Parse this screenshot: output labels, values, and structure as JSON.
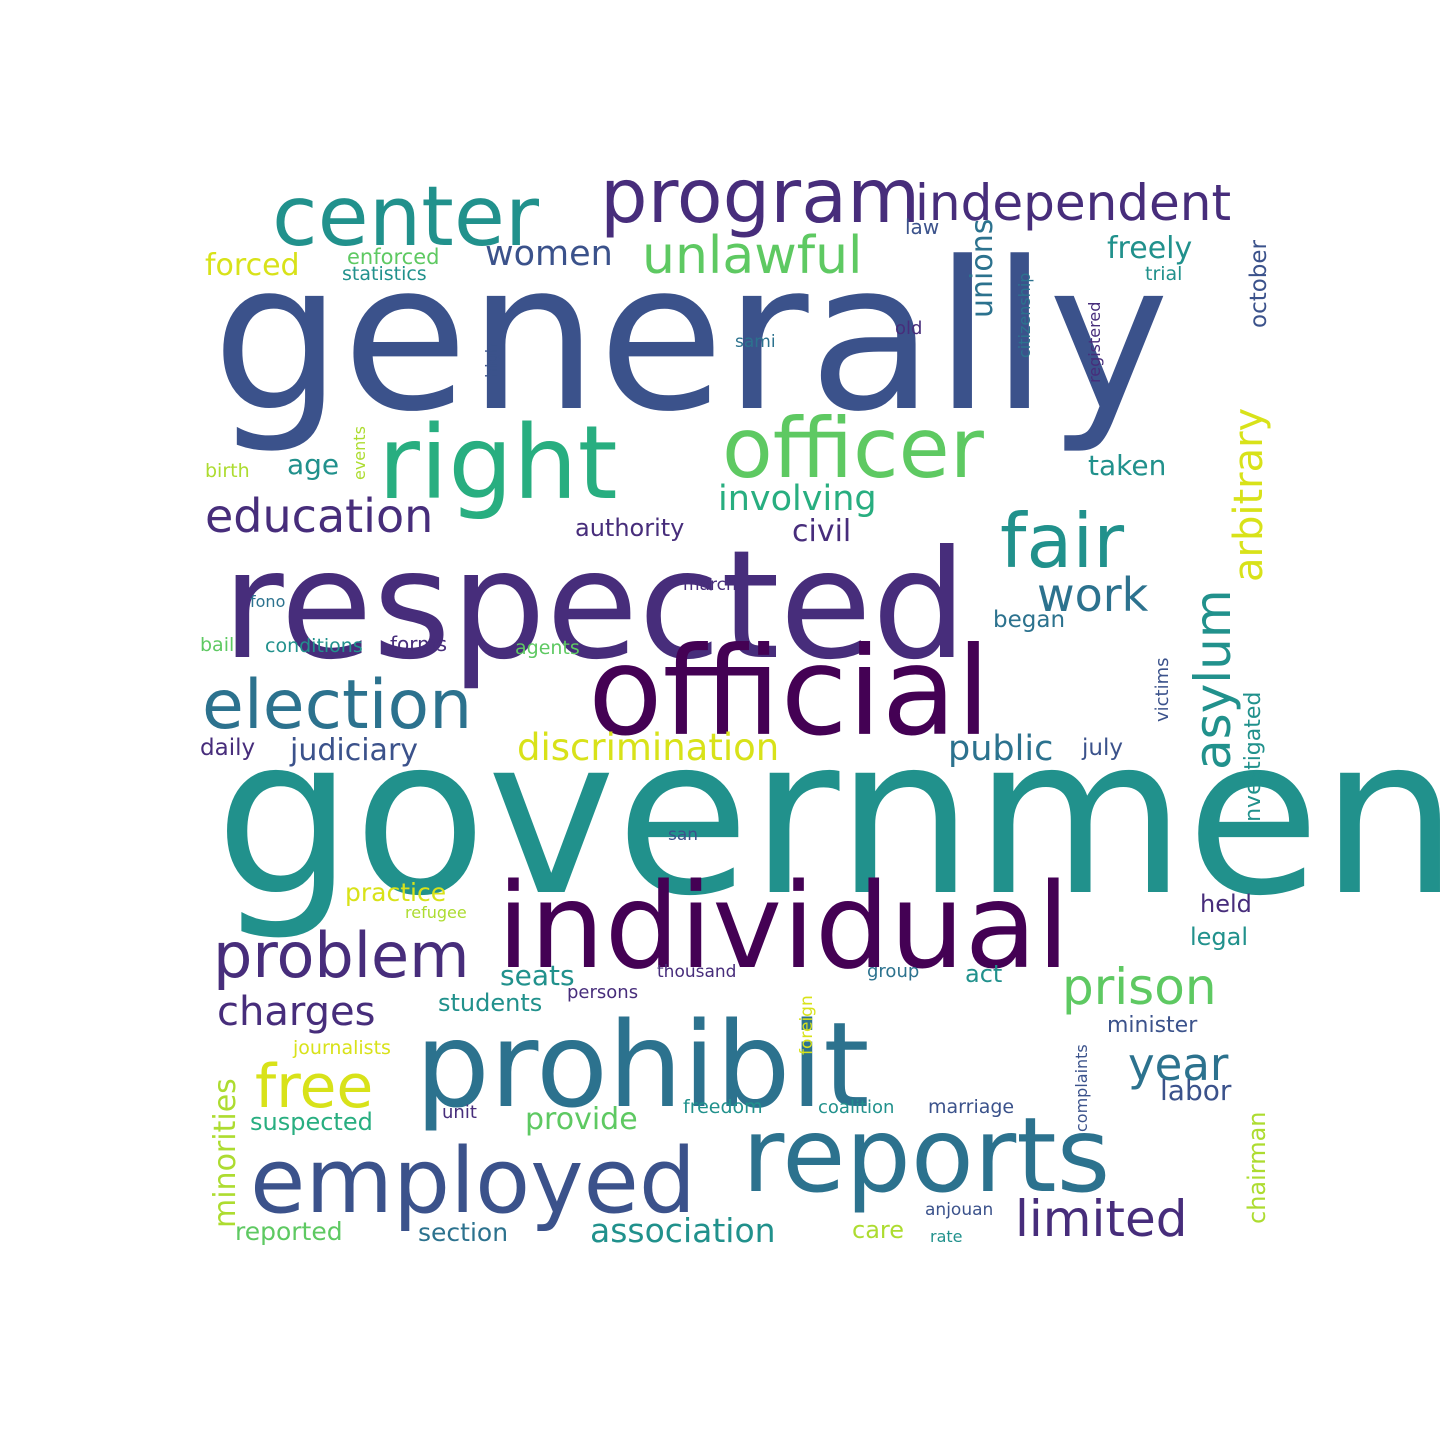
{
  "word_cloud": {
    "palette": {
      "dark_purple": "#440154",
      "purple": "#472d7b",
      "indigo": "#3b528b",
      "blue": "#2c728e",
      "teal": "#21918c",
      "green_teal": "#28ae80",
      "green": "#5ec962",
      "lime": "#addc30",
      "yellow": "#d8e219"
    },
    "words": [
      {
        "text": "generally",
        "color": "indigo"
      },
      {
        "text": "government",
        "color": "teal"
      },
      {
        "text": "respected",
        "color": "purple"
      },
      {
        "text": "official",
        "color": "dark_purple"
      },
      {
        "text": "individual",
        "color": "dark_purple"
      },
      {
        "text": "prohibit",
        "color": "blue"
      },
      {
        "text": "reports",
        "color": "blue"
      },
      {
        "text": "right",
        "color": "green_teal"
      },
      {
        "text": "officer",
        "color": "green"
      },
      {
        "text": "center",
        "color": "teal"
      },
      {
        "text": "program",
        "color": "purple"
      },
      {
        "text": "employed",
        "color": "indigo"
      },
      {
        "text": "election",
        "color": "blue"
      },
      {
        "text": "fair",
        "color": "teal"
      },
      {
        "text": "independent",
        "color": "purple"
      },
      {
        "text": "problem",
        "color": "purple"
      },
      {
        "text": "unlawful",
        "color": "green"
      },
      {
        "text": "free",
        "color": "yellow"
      },
      {
        "text": "prison",
        "color": "green"
      },
      {
        "text": "education",
        "color": "purple"
      },
      {
        "text": "limited",
        "color": "purple"
      },
      {
        "text": "year",
        "color": "blue"
      },
      {
        "text": "asylum",
        "color": "teal"
      },
      {
        "text": "work",
        "color": "blue"
      },
      {
        "text": "charges",
        "color": "purple"
      },
      {
        "text": "involving",
        "color": "green_teal"
      },
      {
        "text": "discrimination",
        "color": "yellow"
      },
      {
        "text": "women",
        "color": "indigo"
      },
      {
        "text": "arbitrary",
        "color": "yellow"
      },
      {
        "text": "association",
        "color": "teal"
      },
      {
        "text": "judiciary",
        "color": "indigo"
      },
      {
        "text": "public",
        "color": "blue"
      },
      {
        "text": "minorities",
        "color": "lime"
      },
      {
        "text": "provide",
        "color": "green"
      },
      {
        "text": "freely",
        "color": "teal"
      },
      {
        "text": "forced",
        "color": "yellow"
      },
      {
        "text": "unions",
        "color": "blue"
      },
      {
        "text": "taken",
        "color": "teal"
      },
      {
        "text": "civil",
        "color": "purple"
      },
      {
        "text": "age",
        "color": "teal"
      },
      {
        "text": "authority",
        "color": "purple"
      },
      {
        "text": "seats",
        "color": "teal"
      },
      {
        "text": "practice",
        "color": "yellow"
      },
      {
        "text": "students",
        "color": "teal"
      },
      {
        "text": "suspected",
        "color": "green_teal"
      },
      {
        "text": "reported",
        "color": "green"
      },
      {
        "text": "section",
        "color": "blue"
      },
      {
        "text": "labor",
        "color": "indigo"
      },
      {
        "text": "minister",
        "color": "indigo"
      },
      {
        "text": "held",
        "color": "purple"
      },
      {
        "text": "legal",
        "color": "teal"
      },
      {
        "text": "act",
        "color": "teal"
      },
      {
        "text": "care",
        "color": "lime"
      },
      {
        "text": "began",
        "color": "blue"
      },
      {
        "text": "investigated",
        "color": "teal"
      },
      {
        "text": "chairman",
        "color": "lime"
      },
      {
        "text": "october",
        "color": "indigo"
      },
      {
        "text": "daily",
        "color": "purple"
      },
      {
        "text": "july",
        "color": "indigo"
      },
      {
        "text": "enforced",
        "color": "green"
      },
      {
        "text": "law",
        "color": "indigo"
      },
      {
        "text": "conditions",
        "color": "teal"
      },
      {
        "text": "forms",
        "color": "purple"
      },
      {
        "text": "statistics",
        "color": "teal"
      },
      {
        "text": "journalists",
        "color": "yellow"
      },
      {
        "text": "victims",
        "color": "indigo"
      },
      {
        "text": "registered",
        "color": "purple"
      },
      {
        "text": "events",
        "color": "lime"
      },
      {
        "text": "birth",
        "color": "lime"
      },
      {
        "text": "high",
        "color": "indigo"
      },
      {
        "text": "complaints",
        "color": "indigo"
      },
      {
        "text": "freedom",
        "color": "teal"
      },
      {
        "text": "coalition",
        "color": "teal"
      },
      {
        "text": "marriage",
        "color": "indigo"
      },
      {
        "text": "foreign",
        "color": "yellow"
      },
      {
        "text": "persons",
        "color": "purple"
      },
      {
        "text": "unit",
        "color": "purple"
      },
      {
        "text": "citizenship",
        "color": "blue"
      },
      {
        "text": "sami",
        "color": "blue"
      },
      {
        "text": "old",
        "color": "purple"
      },
      {
        "text": "trial",
        "color": "teal"
      },
      {
        "text": "march",
        "color": "purple"
      },
      {
        "text": "fono",
        "color": "blue"
      },
      {
        "text": "bail",
        "color": "green"
      },
      {
        "text": "agents",
        "color": "green"
      },
      {
        "text": "san",
        "color": "indigo"
      },
      {
        "text": "refugee",
        "color": "lime"
      },
      {
        "text": "thousand",
        "color": "purple"
      },
      {
        "text": "group",
        "color": "blue"
      },
      {
        "text": "anjouan",
        "color": "indigo"
      },
      {
        "text": "rate",
        "color": "teal"
      }
    ]
  }
}
